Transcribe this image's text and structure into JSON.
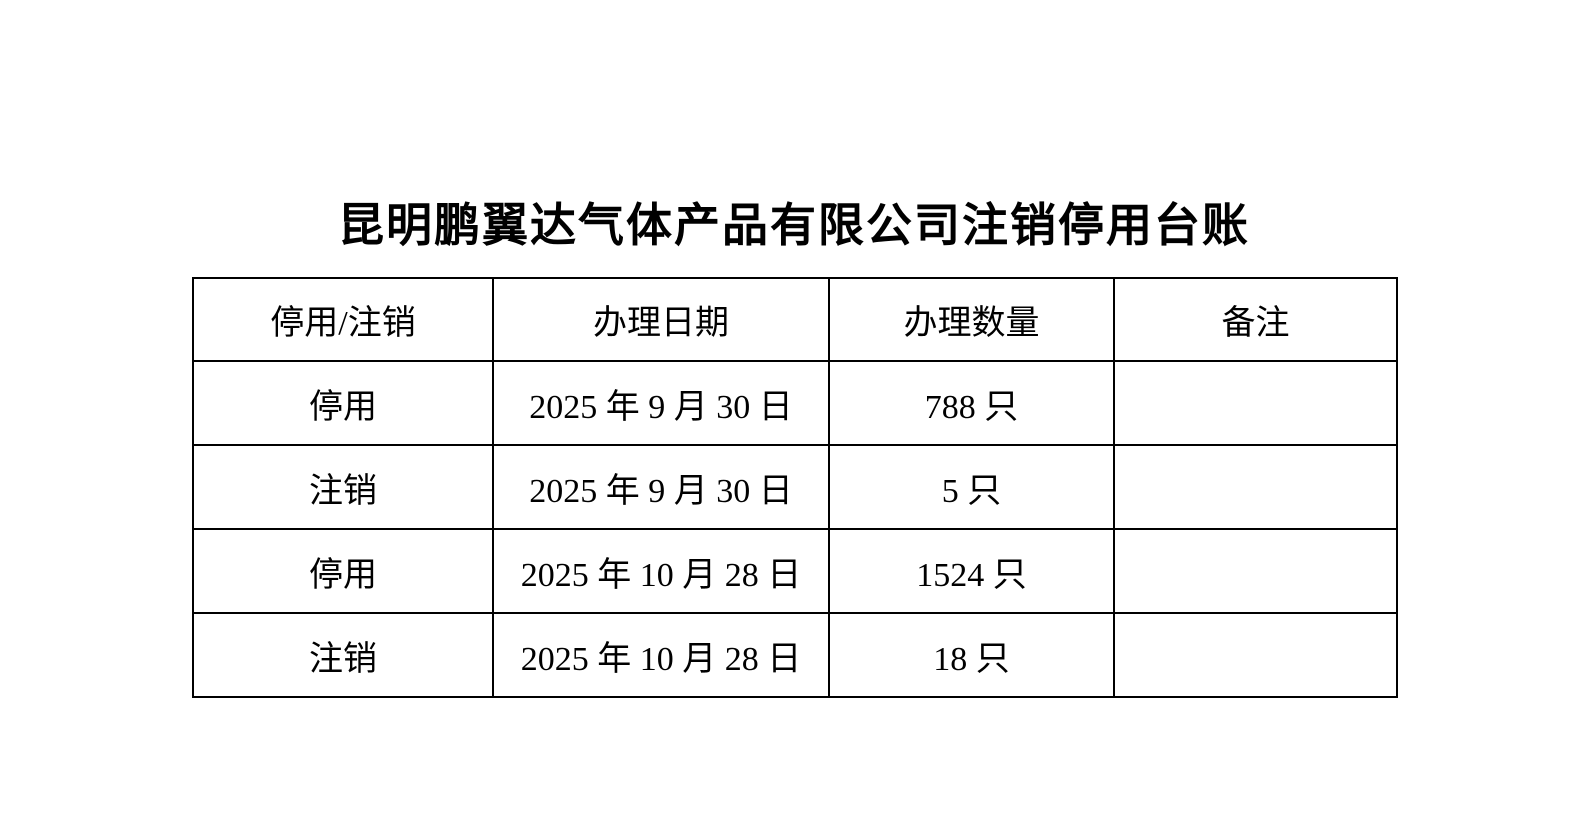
{
  "page": {
    "background_color": "#ffffff",
    "text_color": "#000000",
    "border_color": "#000000",
    "title": "昆明鹏翼达气体产品有限公司注销停用台账"
  },
  "table": {
    "headers": [
      "停用/注销",
      "办理日期",
      "办理数量",
      "备注"
    ],
    "rows": [
      {
        "type": "停用",
        "date": "2025 年 9 月 30 日",
        "quantity": "788 只",
        "remark": ""
      },
      {
        "type": "注销",
        "date": "2025 年 9 月 30 日",
        "quantity": "5 只",
        "remark": ""
      },
      {
        "type": "停用",
        "date": "2025 年 10 月 28 日",
        "quantity": "1524 只",
        "remark": ""
      },
      {
        "type": "注销",
        "date": "2025 年 10 月 28 日",
        "quantity": "18 只",
        "remark": ""
      }
    ]
  }
}
